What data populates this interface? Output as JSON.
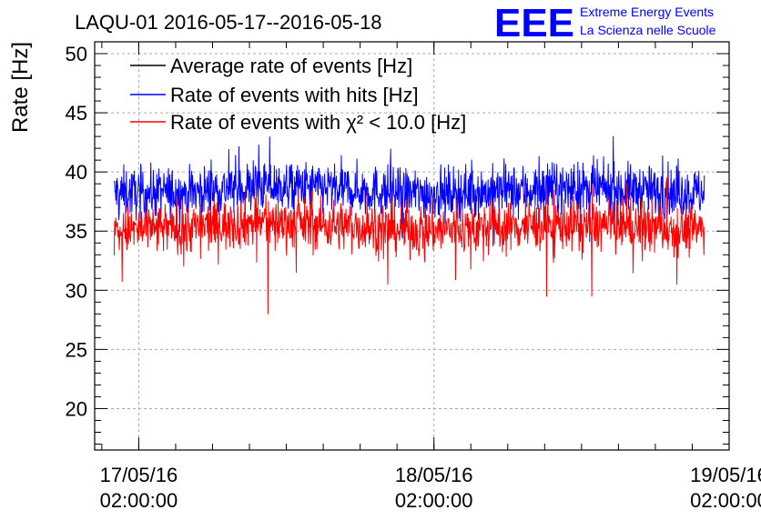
{
  "chart_data": {
    "type": "line",
    "title": "LAQU-01 2016-05-17--2016-05-18",
    "ylabel": "Rate [Hz]",
    "xlabel": "",
    "ylim": [
      16.5,
      51
    ],
    "xlim": [
      "2016-05-16T22:25:00",
      "2016-05-19T02:00:00"
    ],
    "grid": true,
    "legend_position": "top-left",
    "y_ticks": [
      20,
      25,
      30,
      35,
      40,
      45,
      50
    ],
    "x_ticks": [
      {
        "date": "17/05/16",
        "time": "02:00:00",
        "x": "2016-05-17T02:00:00"
      },
      {
        "date": "18/05/16",
        "time": "02:00:00",
        "x": "2016-05-18T02:00:00"
      },
      {
        "date": "19/05/16",
        "time": "02:00:00",
        "x": "2016-05-19T02:00:00"
      }
    ],
    "x_range_data": [
      "2016-05-17T00:00:00",
      "2016-05-18T23:59:00"
    ],
    "series": [
      {
        "name": "Average rate of events [Hz]",
        "color": "#000000",
        "values": []
      },
      {
        "name": "Rate of events with hits [Hz]",
        "color": "#0000ff",
        "mean": 38.4,
        "band": [
          36.5,
          40.5
        ],
        "x": [
          "2016-05-17T00:00",
          "2016-05-17T06:00",
          "2016-05-17T12:00",
          "2016-05-17T18:00",
          "2016-05-18T00:00",
          "2016-05-18T06:00",
          "2016-05-18T12:00",
          "2016-05-18T18:00",
          "2016-05-18T23:59"
        ],
        "values": [
          38.2,
          38.3,
          38.8,
          38.6,
          38.2,
          38.3,
          38.6,
          38.5,
          38.2
        ]
      },
      {
        "name": "Rate of events with χ² < 10.0 [Hz]",
        "color": "#ff0000",
        "mean": 35.3,
        "band": [
          33.5,
          37.5
        ],
        "x": [
          "2016-05-17T00:00",
          "2016-05-17T06:00",
          "2016-05-17T12:00",
          "2016-05-17T18:00",
          "2016-05-18T00:00",
          "2016-05-18T06:00",
          "2016-05-18T12:00",
          "2016-05-18T18:00",
          "2016-05-18T23:59"
        ],
        "values": [
          35.0,
          35.3,
          35.8,
          35.5,
          35.1,
          35.2,
          35.6,
          35.4,
          35.1
        ],
        "dips": [
          {
            "x": "2016-05-17T12:30",
            "value": 28.0
          },
          {
            "x": "2016-05-17T22:15",
            "value": 30.5
          },
          {
            "x": "2016-05-18T11:10",
            "value": 29.5
          },
          {
            "x": "2016-05-18T14:50",
            "value": 29.5
          },
          {
            "x": "2016-05-18T21:45",
            "value": 30.5
          }
        ]
      }
    ]
  },
  "logo": {
    "letters": "EEE",
    "line1": "Extreme Energy Events",
    "line2": "La Scienza nelle Scuole",
    "color": "#0000ff"
  }
}
